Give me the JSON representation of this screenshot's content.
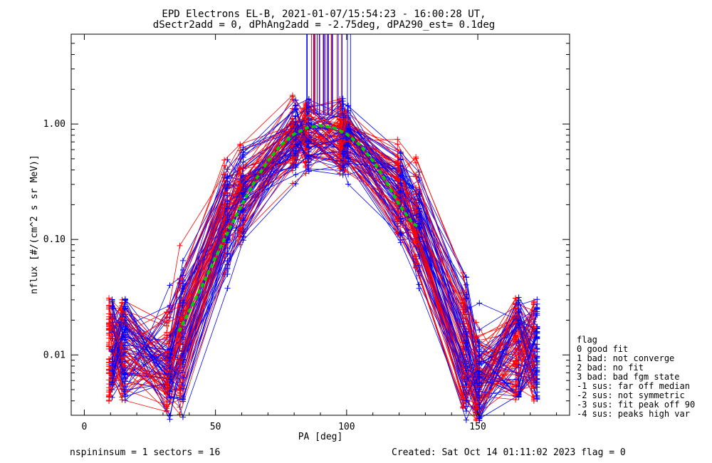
{
  "chart_data": {
    "type": "line",
    "title_line1": "EPD Electrons EL-B, 2021-01-07/15:54:23 - 16:00:28 UT,",
    "title_line2": "dSectr2add = 0, dPhAng2add = -2.75deg, dPA290_est=   0.1deg",
    "xlabel": "PA [deg]",
    "ylabel": "nflux [#/(cm^2 s sr MeV)]",
    "xlim": [
      -5,
      185
    ],
    "ylim": [
      0.003,
      6.0
    ],
    "yscale": "log",
    "x_ticks": [
      0,
      50,
      100,
      150
    ],
    "x_tick_labels": [
      "0",
      "50",
      "100",
      "150"
    ],
    "y_ticks": [
      0.01,
      0.1,
      1.0
    ],
    "y_tick_labels": [
      "0.01",
      "0.10",
      "1.00"
    ],
    "pa_bins": [
      10,
      15,
      32,
      37,
      54,
      60,
      80,
      85,
      98,
      100,
      120,
      127,
      145,
      150,
      165,
      172
    ],
    "series_colors": {
      "red": "#ff0000",
      "blue": "#0000ff",
      "fit": "#00cc00"
    },
    "fit_curve": {
      "x": [
        36,
        40,
        45,
        50,
        55,
        60,
        65,
        70,
        75,
        80,
        85,
        90,
        95,
        100,
        105,
        110,
        115,
        120,
        125,
        127
      ],
      "y": [
        0.016,
        0.024,
        0.04,
        0.07,
        0.12,
        0.2,
        0.32,
        0.48,
        0.66,
        0.82,
        0.93,
        0.97,
        0.93,
        0.82,
        0.66,
        0.48,
        0.32,
        0.2,
        0.14,
        0.13
      ]
    },
    "legend": {
      "title": "flag",
      "entries": [
        " 0 good fit",
        " 1 bad: not converge",
        " 2 bad: no fit",
        " 3 bad: bad fgm state",
        "-1 sus: far off median",
        "-2 sus: not symmetric",
        "-3 sus: fit peak off 90",
        "-4 sus: peaks high var"
      ]
    },
    "footer_left": "nspininsum =  1  sectors = 16",
    "footer_right": "Created: Sat Oct 14 01:11:02 2023   flag = 0"
  }
}
